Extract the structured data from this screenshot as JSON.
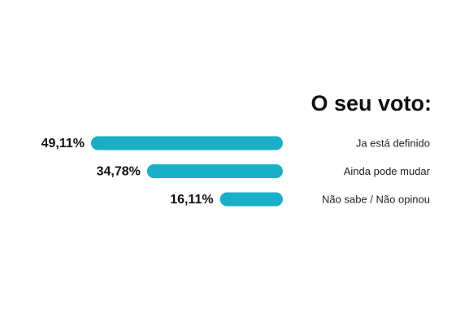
{
  "chart_data": {
    "type": "bar",
    "orientation": "horizontal",
    "title": "O seu voto:",
    "categories": [
      "Ja está definido",
      "Ainda pode mudar",
      "Não sabe / Não opinou"
    ],
    "values": [
      49.11,
      34.78,
      16.11
    ],
    "value_labels": [
      "49,11%",
      "34,78%",
      "16,11%"
    ],
    "color": "#1aafc8"
  }
}
